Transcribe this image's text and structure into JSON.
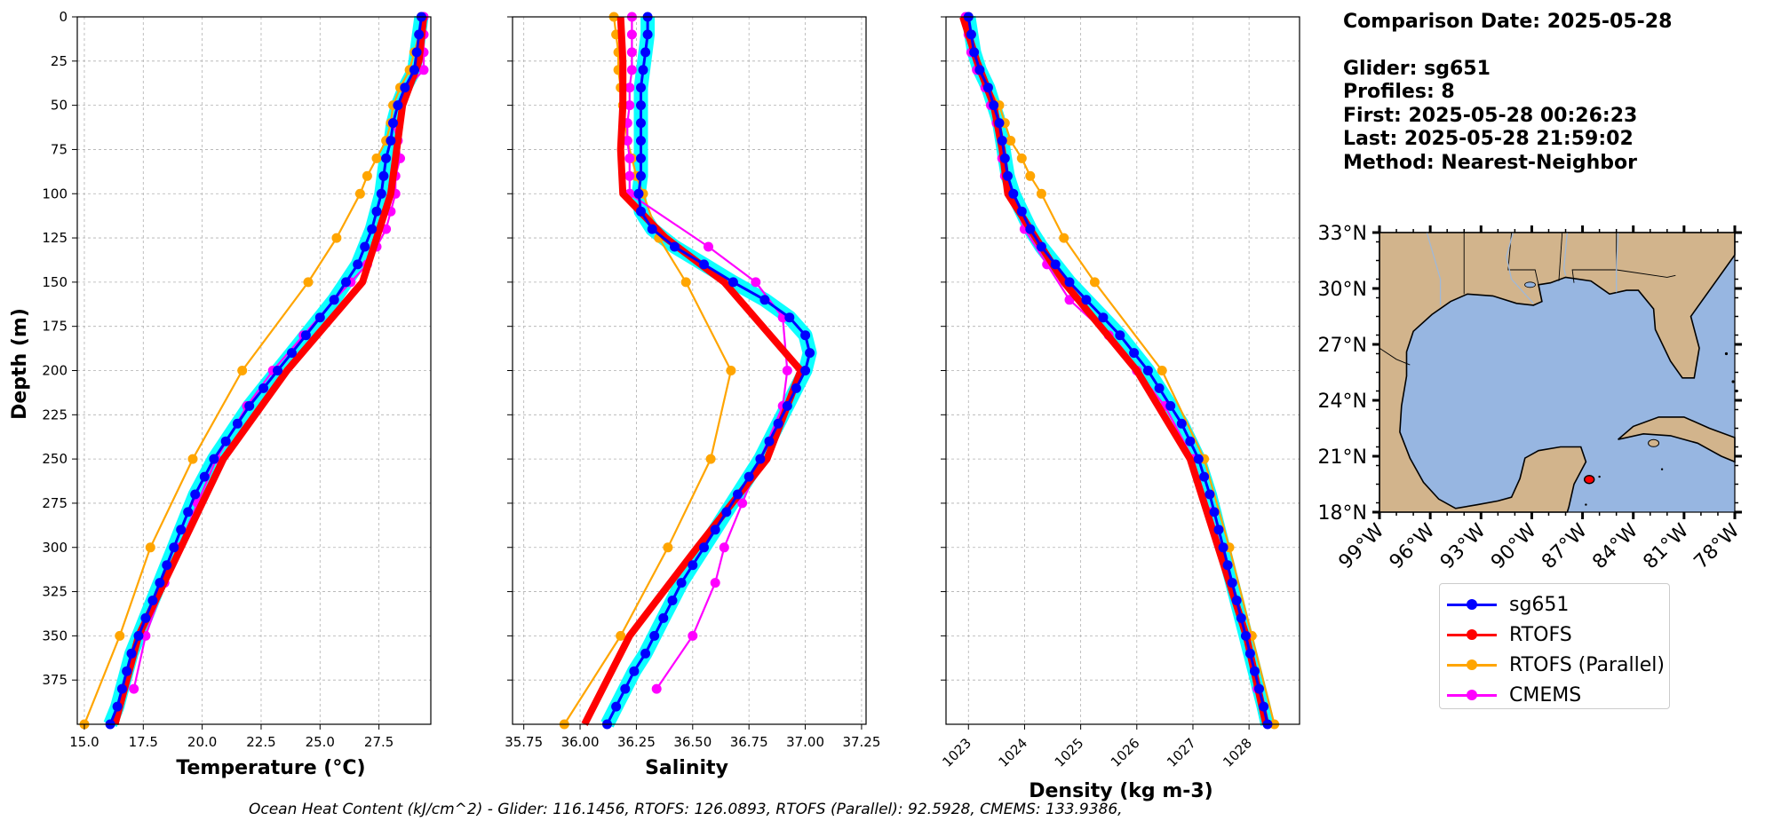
{
  "title_block": {
    "comparison": "Comparison Date: 2025-05-28",
    "glider": "Glider: sg651",
    "profiles": "Profiles: 8",
    "first": "First: 2025-05-28 00:26:23",
    "last": "Last: 2025-05-28 21:59:02",
    "method": "Method: Nearest-Neighbor"
  },
  "footer": {
    "ohc": "Ocean Heat Content (kJ/cm^2) - Glider: 116.1456,  RTOFS: 126.0893,  RTOFS (Parallel): 92.5928,  CMEMS: 133.9386,"
  },
  "legend": [
    {
      "name": "sg651",
      "color": "#0000ff"
    },
    {
      "name": "RTOFS",
      "color": "#ff0000"
    },
    {
      "name": "RTOFS (Parallel)",
      "color": "#ffa500"
    },
    {
      "name": "CMEMS",
      "color": "#ff00ff"
    }
  ],
  "map": {
    "lat_ticks": [
      "33°N",
      "30°N",
      "27°N",
      "24°N",
      "21°N",
      "18°N"
    ],
    "lon_ticks": [
      "99°W",
      "96°W",
      "93°W",
      "90°W",
      "87°W",
      "84°W",
      "81°W",
      "78°W"
    ],
    "extent": {
      "lon": [
        -99,
        -78
      ],
      "lat": [
        18,
        33
      ]
    },
    "ocean_color": "#97b6e1",
    "land_color": "#d2b48c",
    "glider_position": {
      "lon": -86.6,
      "lat": 19.75
    }
  },
  "chart_data": [
    {
      "type": "line",
      "xlabel": "Temperature (°C)",
      "ylabel": "Depth (m)",
      "xlim": [
        14.7,
        29.7
      ],
      "ylim": [
        400,
        0
      ],
      "xticks": [
        "15.0",
        "17.5",
        "20.0",
        "22.5",
        "25.0",
        "27.5"
      ],
      "yticks": [
        "0",
        "25",
        "50",
        "75",
        "100",
        "125",
        "150",
        "175",
        "200",
        "225",
        "250",
        "275",
        "300",
        "325",
        "350",
        "375"
      ],
      "grid": true,
      "depth": [
        0,
        10,
        20,
        30,
        40,
        50,
        60,
        70,
        80,
        90,
        100,
        110,
        120,
        130,
        140,
        150,
        160,
        170,
        180,
        190,
        200,
        210,
        220,
        230,
        240,
        250,
        260,
        270,
        280,
        290,
        300,
        310,
        320,
        330,
        340,
        350,
        360,
        370,
        380,
        390,
        400
      ],
      "series": [
        {
          "name": "sg651",
          "x": [
            29.3,
            29.2,
            29.1,
            29.0,
            28.6,
            28.3,
            28.1,
            28.0,
            27.8,
            27.7,
            27.6,
            27.4,
            27.2,
            26.9,
            26.6,
            26.1,
            25.6,
            25.0,
            24.4,
            23.8,
            23.2,
            22.6,
            22.0,
            21.5,
            21.0,
            20.5,
            20.1,
            19.7,
            19.4,
            19.1,
            18.8,
            18.5,
            18.2,
            17.9,
            17.6,
            17.3,
            17.0,
            16.8,
            16.6,
            16.4,
            16.1
          ]
        },
        {
          "name": "RTOFS",
          "depth": [
            0,
            25,
            50,
            100,
            150,
            200,
            250,
            350,
            400
          ],
          "x": [
            29.4,
            29.2,
            28.5,
            28.0,
            26.8,
            23.6,
            20.9,
            17.3,
            16.3
          ]
        },
        {
          "name": "RTOFS (Parallel)",
          "depth": [
            0,
            10,
            20,
            30,
            40,
            50,
            60,
            70,
            80,
            90,
            100,
            125,
            150,
            200,
            250,
            300,
            350,
            400
          ],
          "x": [
            29.3,
            29.2,
            29.0,
            28.8,
            28.4,
            28.1,
            28.0,
            27.8,
            27.4,
            27.0,
            26.7,
            25.7,
            24.5,
            21.7,
            19.6,
            17.8,
            16.5,
            15.0
          ]
        },
        {
          "name": "CMEMS",
          "depth": [
            0,
            10,
            20,
            30,
            40,
            50,
            60,
            70,
            80,
            90,
            100,
            110,
            120,
            130,
            140,
            150,
            160,
            180,
            200,
            220,
            250,
            275,
            300,
            320,
            350,
            380
          ],
          "x": [
            29.4,
            29.4,
            29.4,
            29.4,
            28.7,
            28.3,
            28.1,
            28.3,
            28.4,
            28.2,
            28.2,
            28.0,
            27.8,
            27.4,
            27.0,
            26.3,
            25.6,
            24.3,
            23.0,
            21.9,
            20.6,
            19.8,
            19.0,
            18.4,
            17.6,
            17.1
          ]
        }
      ]
    },
    {
      "type": "line",
      "xlabel": "Salinity",
      "xlim": [
        35.7,
        37.27
      ],
      "ylim": [
        400,
        0
      ],
      "xticks": [
        "35.75",
        "36.00",
        "36.25",
        "36.50",
        "36.75",
        "37.00",
        "37.25"
      ],
      "grid": true,
      "depth": [
        0,
        10,
        20,
        30,
        40,
        50,
        60,
        70,
        80,
        90,
        100,
        110,
        120,
        130,
        140,
        150,
        160,
        170,
        180,
        190,
        200,
        210,
        220,
        230,
        240,
        250,
        260,
        270,
        280,
        290,
        300,
        310,
        320,
        330,
        340,
        350,
        360,
        370,
        380,
        390,
        400
      ],
      "series": [
        {
          "name": "sg651",
          "x": [
            36.3,
            36.3,
            36.29,
            36.28,
            36.27,
            36.27,
            36.27,
            36.27,
            36.27,
            36.27,
            36.26,
            36.27,
            36.32,
            36.42,
            36.55,
            36.68,
            36.82,
            36.93,
            37.0,
            37.02,
            37.0,
            36.96,
            36.92,
            36.88,
            36.84,
            36.8,
            36.75,
            36.7,
            36.65,
            36.6,
            36.55,
            36.5,
            36.45,
            36.41,
            36.37,
            36.33,
            36.29,
            36.24,
            36.2,
            36.16,
            36.12
          ]
        },
        {
          "name": "RTOFS",
          "depth": [
            0,
            25,
            50,
            75,
            100,
            125,
            150,
            200,
            250,
            300,
            350,
            400
          ],
          "x": [
            36.18,
            36.19,
            36.19,
            36.18,
            36.19,
            36.38,
            36.64,
            36.98,
            36.83,
            36.52,
            36.22,
            36.02
          ]
        },
        {
          "name": "RTOFS (Parallel)",
          "depth": [
            0,
            10,
            20,
            30,
            40,
            50,
            60,
            70,
            80,
            90,
            100,
            125,
            150,
            200,
            250,
            300,
            350,
            400
          ],
          "x": [
            36.15,
            36.16,
            36.17,
            36.17,
            36.18,
            36.19,
            36.2,
            36.21,
            36.23,
            36.25,
            36.28,
            36.35,
            36.47,
            36.67,
            36.58,
            36.39,
            36.18,
            35.93
          ]
        },
        {
          "name": "CMEMS",
          "depth": [
            0,
            10,
            20,
            30,
            40,
            50,
            60,
            70,
            80,
            90,
            100,
            130,
            150,
            170,
            200,
            220,
            250,
            275,
            300,
            320,
            350,
            380
          ],
          "x": [
            36.23,
            36.23,
            36.23,
            36.23,
            36.22,
            36.22,
            36.21,
            36.21,
            36.22,
            36.22,
            36.22,
            36.57,
            36.78,
            36.9,
            36.92,
            36.9,
            36.8,
            36.72,
            36.64,
            36.6,
            36.5,
            36.34
          ]
        }
      ]
    },
    {
      "type": "line",
      "xlabel": "Density (kg m-3)",
      "xlim": [
        1022.6,
        1028.9
      ],
      "ylim": [
        400,
        0
      ],
      "xticks": [
        "1023",
        "1024",
        "1025",
        "1026",
        "1027",
        "1028"
      ],
      "grid": true,
      "depth": [
        0,
        10,
        20,
        30,
        40,
        50,
        60,
        70,
        80,
        90,
        100,
        110,
        120,
        130,
        140,
        150,
        160,
        170,
        180,
        190,
        200,
        210,
        220,
        230,
        240,
        250,
        260,
        270,
        280,
        290,
        300,
        310,
        320,
        330,
        340,
        350,
        360,
        370,
        380,
        390,
        400
      ],
      "series": [
        {
          "name": "sg651",
          "x": [
            1023.0,
            1023.05,
            1023.1,
            1023.2,
            1023.35,
            1023.45,
            1023.55,
            1023.6,
            1023.65,
            1023.7,
            1023.8,
            1023.95,
            1024.1,
            1024.3,
            1024.55,
            1024.8,
            1025.1,
            1025.4,
            1025.7,
            1025.95,
            1026.2,
            1026.4,
            1026.6,
            1026.8,
            1026.95,
            1027.1,
            1027.2,
            1027.3,
            1027.38,
            1027.46,
            1027.54,
            1027.62,
            1027.7,
            1027.78,
            1027.86,
            1027.94,
            1028.02,
            1028.1,
            1028.18,
            1028.26,
            1028.33
          ]
        },
        {
          "name": "RTOFS",
          "depth": [
            0,
            25,
            50,
            75,
            100,
            150,
            200,
            250,
            350,
            400
          ],
          "x": [
            1022.9,
            1023.15,
            1023.45,
            1023.6,
            1023.7,
            1024.7,
            1026.0,
            1026.95,
            1027.95,
            1028.3
          ]
        },
        {
          "name": "RTOFS (Parallel)",
          "depth": [
            0,
            10,
            20,
            30,
            40,
            50,
            60,
            70,
            80,
            90,
            100,
            125,
            150,
            200,
            250,
            300,
            350,
            400
          ],
          "x": [
            1023.0,
            1023.05,
            1023.1,
            1023.2,
            1023.35,
            1023.55,
            1023.65,
            1023.75,
            1023.95,
            1024.1,
            1024.3,
            1024.7,
            1025.25,
            1026.45,
            1027.2,
            1027.65,
            1028.05,
            1028.45
          ]
        },
        {
          "name": "CMEMS",
          "depth": [
            0,
            10,
            20,
            30,
            40,
            50,
            60,
            70,
            80,
            90,
            100,
            120,
            140,
            160,
            180,
            200,
            220,
            250,
            280,
            300,
            320,
            350,
            380
          ],
          "x": [
            1022.95,
            1023.0,
            1023.05,
            1023.15,
            1023.3,
            1023.4,
            1023.5,
            1023.6,
            1023.6,
            1023.65,
            1023.75,
            1024.0,
            1024.4,
            1024.8,
            1025.5,
            1026.0,
            1026.5,
            1027.0,
            1027.3,
            1027.5,
            1027.7,
            1027.95,
            1028.15
          ]
        }
      ]
    }
  ]
}
